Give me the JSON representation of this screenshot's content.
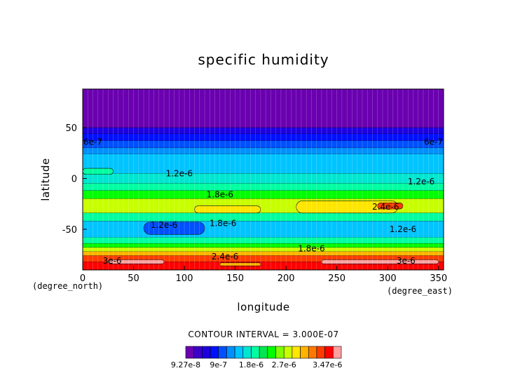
{
  "chart_data": {
    "type": "heatmap",
    "title": "specific humidity",
    "xlabel": "longitude",
    "ylabel": "latitude",
    "x_unit": "(degree_east)",
    "y_unit": "(degree_north)",
    "xlim": [
      0,
      355
    ],
    "ylim": [
      -90,
      88
    ],
    "xticks": [
      0,
      50,
      100,
      150,
      200,
      250,
      300,
      350
    ],
    "yticks": [
      50,
      0,
      -50
    ],
    "contour_interval_label": "CONTOUR INTERVAL = 3.000E-07",
    "colorbar_labels": [
      "9.27e-8",
      "9e-7",
      "1.8e-6",
      "2.7e-6",
      "3.47e-6"
    ],
    "colorbar_colors": [
      "#6a00b0",
      "#3c00c8",
      "#1e00e0",
      "#0010ff",
      "#0050ff",
      "#0090ff",
      "#00c4ff",
      "#00e6d0",
      "#00ffa0",
      "#00e650",
      "#00ff00",
      "#80ff00",
      "#c8ff00",
      "#ffe600",
      "#ffb400",
      "#ff7800",
      "#ff3c00",
      "#ff0000",
      "#ffa0a0"
    ],
    "contour_labels": [
      {
        "text": "6e-7",
        "lon": 10,
        "lat": 36
      },
      {
        "text": "6e-7",
        "lon": 345,
        "lat": 36
      },
      {
        "text": "1.2e-6",
        "lon": 95,
        "lat": 5
      },
      {
        "text": "1.2e-6",
        "lon": 333,
        "lat": -3
      },
      {
        "text": "1.8e-6",
        "lon": 135,
        "lat": -16
      },
      {
        "text": "2.4e-6",
        "lon": 298,
        "lat": -28
      },
      {
        "text": "1.2e-6",
        "lon": 80,
        "lat": -46
      },
      {
        "text": "1.8e-6",
        "lon": 138,
        "lat": -44
      },
      {
        "text": "1.2e-6",
        "lon": 315,
        "lat": -50
      },
      {
        "text": "1.8e-6",
        "lon": 225,
        "lat": -69
      },
      {
        "text": "2.4e-6",
        "lon": 140,
        "lat": -77
      },
      {
        "text": "3e-6",
        "lon": 29,
        "lat": -81
      },
      {
        "text": "3e-6",
        "lon": 318,
        "lat": -81
      }
    ],
    "bands": [
      {
        "lat_top": 88,
        "lat_bottom": 50,
        "color_index": 0
      },
      {
        "lat_top": 50,
        "lat_bottom": 44,
        "color_index": 2
      },
      {
        "lat_top": 44,
        "lat_bottom": 37,
        "color_index": 3
      },
      {
        "lat_top": 37,
        "lat_bottom": 30,
        "color_index": 4
      },
      {
        "lat_top": 30,
        "lat_bottom": 24,
        "color_index": 5
      },
      {
        "lat_top": 24,
        "lat_bottom": 5,
        "color_index": 6
      },
      {
        "lat_top": 5,
        "lat_bottom": -5,
        "color_index": 7
      },
      {
        "lat_top": -5,
        "lat_bottom": -12,
        "color_index": 8
      },
      {
        "lat_top": -12,
        "lat_bottom": -20,
        "color_index": 10
      },
      {
        "lat_top": -20,
        "lat_bottom": -34,
        "color_index": 12
      },
      {
        "lat_top": -34,
        "lat_bottom": -42,
        "color_index": 8
      },
      {
        "lat_top": -42,
        "lat_bottom": -58,
        "color_index": 6
      },
      {
        "lat_top": -58,
        "lat_bottom": -64,
        "color_index": 8
      },
      {
        "lat_top": -64,
        "lat_bottom": -68,
        "color_index": 10
      },
      {
        "lat_top": -68,
        "lat_bottom": -72,
        "color_index": 12
      },
      {
        "lat_top": -72,
        "lat_bottom": -76,
        "color_index": 14
      },
      {
        "lat_top": -76,
        "lat_bottom": -82,
        "color_index": 16
      },
      {
        "lat_top": -82,
        "lat_bottom": -90,
        "color_index": 17
      }
    ],
    "patches": [
      {
        "lon_start": 0,
        "lon_end": 30,
        "lat_top": 10,
        "lat_bottom": 4,
        "color_index": 8
      },
      {
        "lon_start": 60,
        "lon_end": 120,
        "lat_top": -43,
        "lat_bottom": -55,
        "color_index": 4
      },
      {
        "lon_start": 110,
        "lon_end": 175,
        "lat_top": -27,
        "lat_bottom": -34,
        "color_index": 13
      },
      {
        "lon_start": 210,
        "lon_end": 310,
        "lat_top": -22,
        "lat_bottom": -34,
        "color_index": 13
      },
      {
        "lon_start": 290,
        "lon_end": 315,
        "lat_top": -24,
        "lat_bottom": -30,
        "color_index": 16
      },
      {
        "lon_start": 25,
        "lon_end": 80,
        "lat_top": -80,
        "lat_bottom": -84,
        "color_index": 18
      },
      {
        "lon_start": 235,
        "lon_end": 350,
        "lat_top": -80,
        "lat_bottom": -84,
        "color_index": 18
      },
      {
        "lon_start": 135,
        "lon_end": 175,
        "lat_top": -83,
        "lat_bottom": -86,
        "color_index": 14
      }
    ]
  }
}
